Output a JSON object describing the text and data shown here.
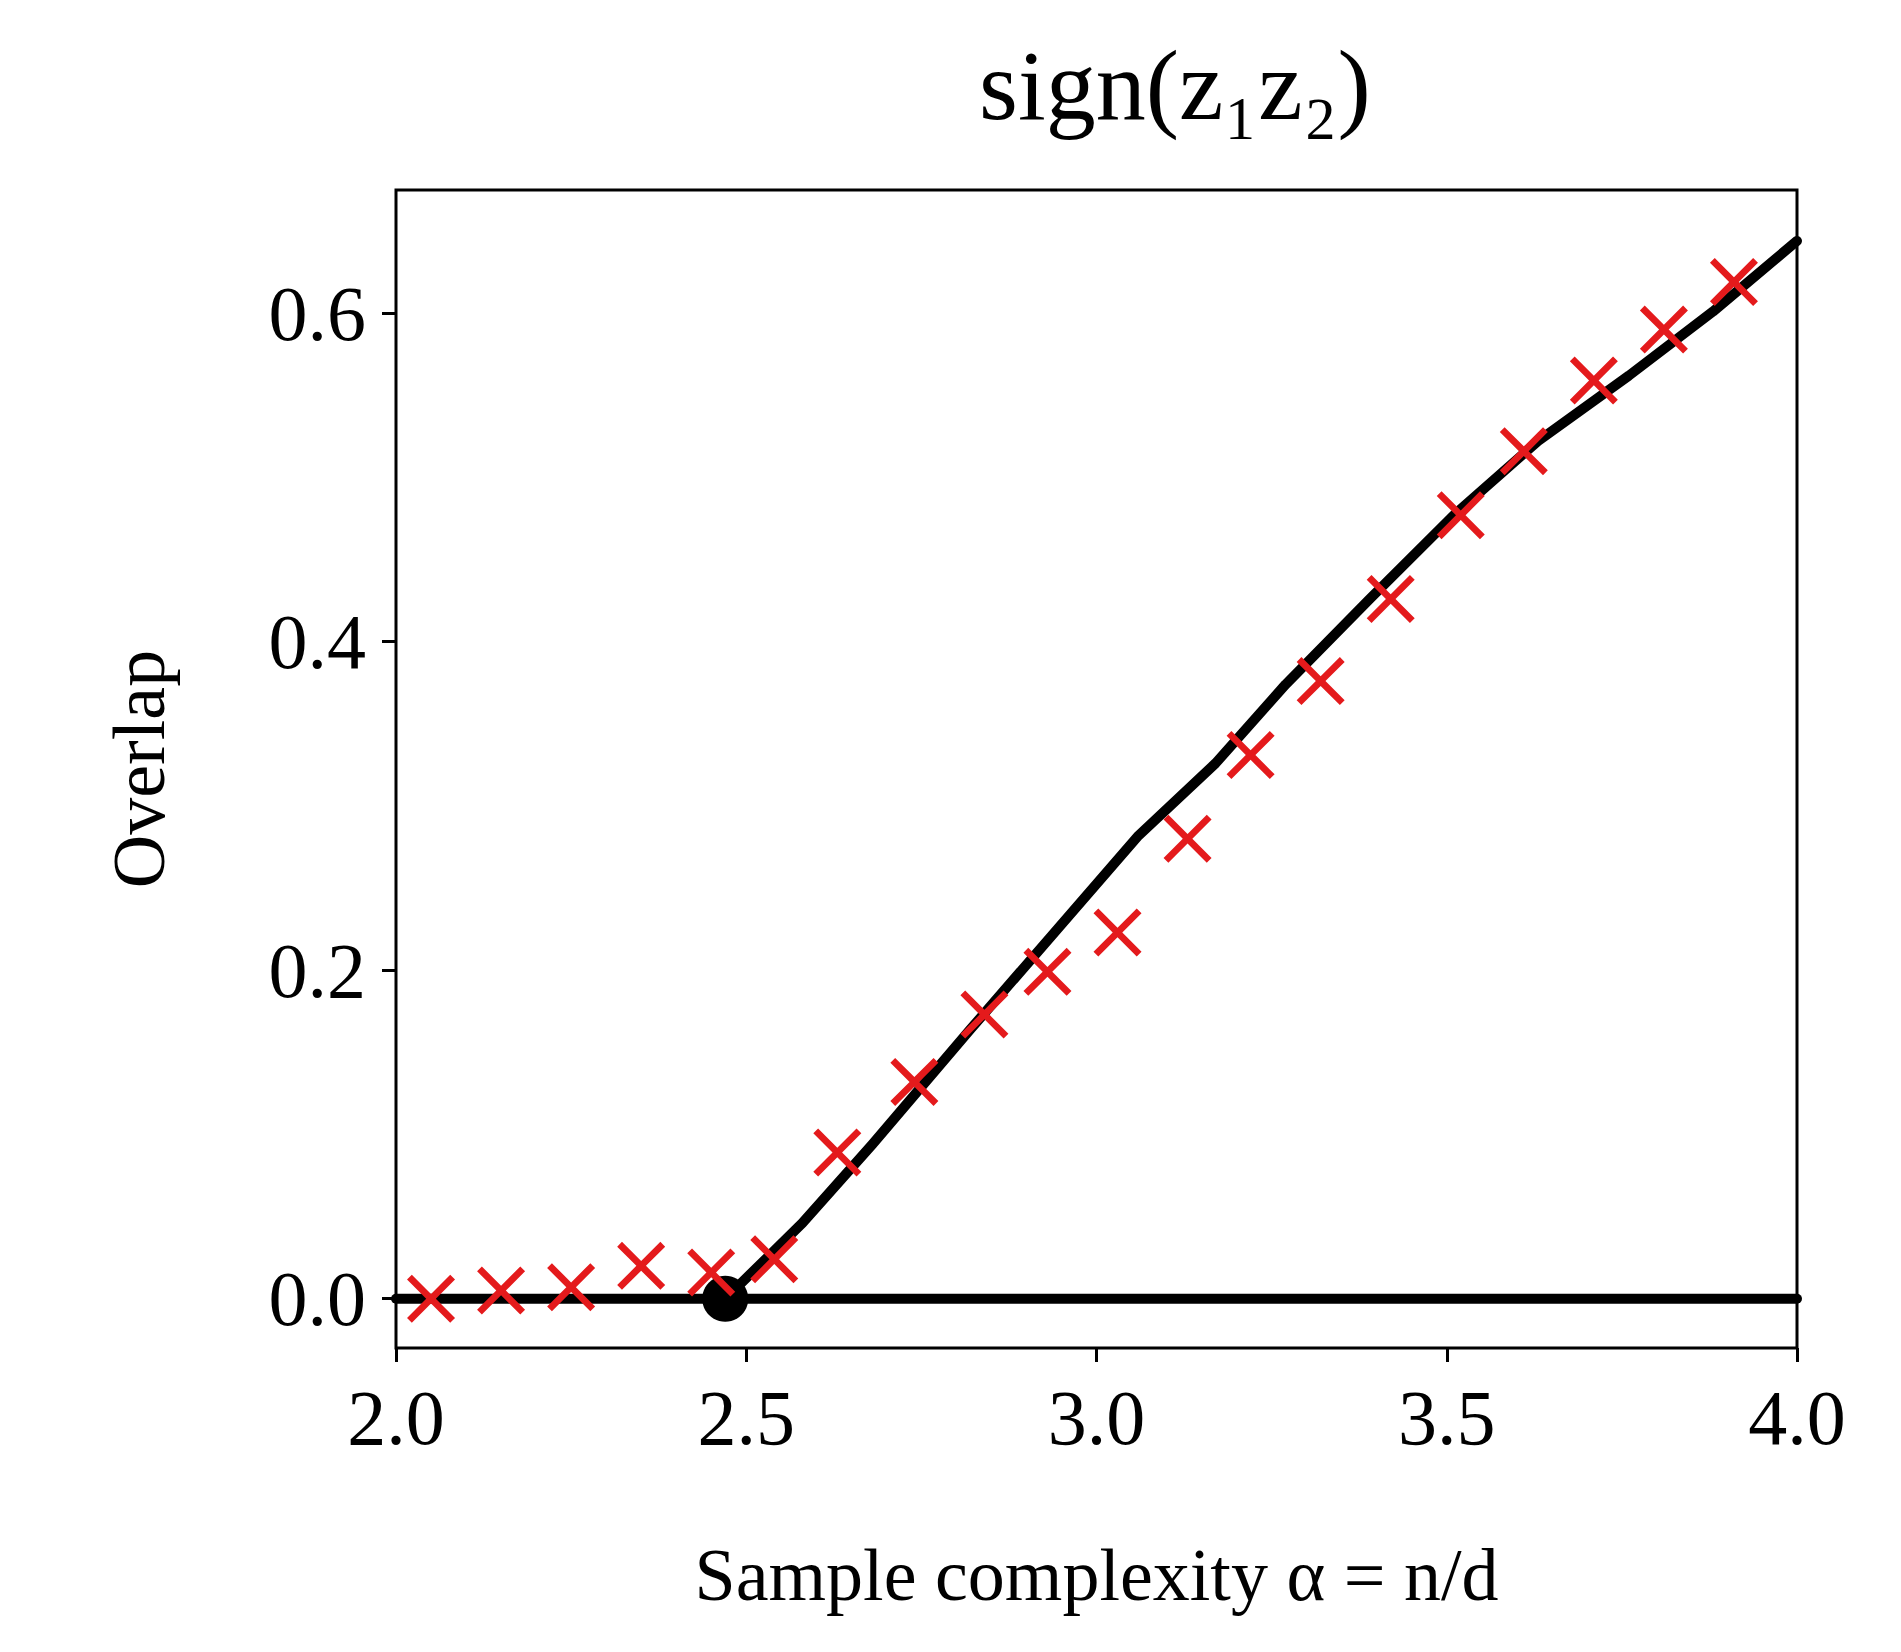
{
  "chart_data": {
    "type": "line",
    "title": "sign(z₁z₂)",
    "xlabel": "Sample complexity α = n/d",
    "ylabel": "Overlap",
    "xlim": [
      2,
      4
    ],
    "xticks": [
      {
        "value": 2,
        "label": "2.0"
      },
      {
        "value": 2.5,
        "label": "2.5"
      },
      {
        "value": 3,
        "label": "3.0"
      },
      {
        "value": 3.5,
        "label": "3.5"
      },
      {
        "value": 4,
        "label": "4.0"
      }
    ],
    "ylim": [
      -0.03,
      0.675
    ],
    "yticks": [
      {
        "value": 0,
        "label": "0.0"
      },
      {
        "value": 0.2,
        "label": "0.2"
      },
      {
        "value": 0.4,
        "label": "0.4"
      },
      {
        "value": 0.6,
        "label": "0.6"
      }
    ],
    "grid": false,
    "line_style": "solid",
    "series": [
      {
        "color": "#000000",
        "marker": "none",
        "x": [
          2,
          4
        ],
        "values": [
          0,
          0
        ]
      },
      {
        "color": "#000000",
        "marker": "none",
        "x": [
          2.47,
          2.58,
          2.68,
          2.82,
          2.94,
          3.06,
          3.17,
          3.27,
          3.39,
          3.51,
          3.63,
          3.76,
          3.88,
          4.0
        ],
        "values": [
          0,
          0.046,
          0.094,
          0.164,
          0.223,
          0.282,
          0.326,
          0.374,
          0.426,
          0.477,
          0.522,
          0.562,
          0.601,
          0.644
        ]
      },
      {
        "type": "scatter",
        "color": "#000000",
        "marker": "circle",
        "x": [
          2.47
        ],
        "values": [
          0
        ]
      },
      {
        "type": "scatter",
        "color": "#e41a1c",
        "marker": "cross",
        "x": [
          2.05,
          2.15,
          2.25,
          2.35,
          2.45,
          2.54,
          2.63,
          2.74,
          2.84,
          2.93,
          3.03,
          3.13,
          3.22,
          3.32,
          3.42,
          3.52,
          3.61,
          3.71,
          3.81,
          3.91
        ],
        "values": [
          0,
          0.005,
          0.007,
          0.02,
          0.016,
          0.024,
          0.089,
          0.132,
          0.173,
          0.199,
          0.223,
          0.28,
          0.331,
          0.376,
          0.426,
          0.477,
          0.516,
          0.559,
          0.59,
          0.619
        ]
      }
    ]
  }
}
